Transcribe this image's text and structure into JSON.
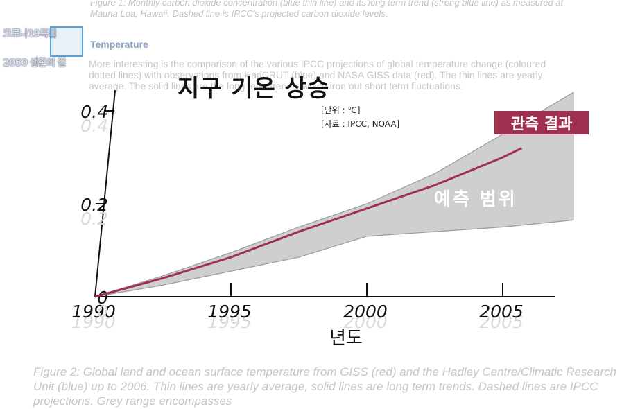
{
  "background": {
    "fig1_caption": "Figure 1: Monthly carbon dioxide concentration (blue thin line) and its long term trend (strong blue line) as measured at Mauna Loa, Hawaii. Dashed line is IPCC's projected carbon dioxide levels.",
    "heading": "Temperature",
    "body": "More interesting is the comparison of the various IPCC projections of global temperature change (coloured dotted lines) with observations from HadCRUT (blue) and NASA GISS data (red). The thin lines are yearly average. The solid lines are the long term trends, which iron out short term fluctuations.",
    "fig2_caption": "Figure 2: Global land and ocean surface temperature from GISS (red) and the Hadley Centre/Climatic Research Unit (blue) up to 2006. Thin lines are yearly average, solid lines are long term trends. Dashed lines are IPCC projections. Grey range encompasses"
  },
  "logo": {
    "line1": "코로나19특집",
    "line2": "2050 생존의 길"
  },
  "unit_note": "[단위 : ℃]",
  "source_note": "[자료 : IPCC, NOAA]",
  "colors": {
    "observed_line": "#a03050",
    "range_fill": "#cfcfcf",
    "range_stroke": "#9a9a9a",
    "obs_label_bg": "#a03050"
  },
  "chart_data": {
    "type": "line",
    "title": "지구 기온 상승",
    "xlabel": "년도",
    "ylabel": "",
    "x_ticks": [
      1990,
      1995,
      2000,
      2005
    ],
    "y_ticks": [
      0,
      0.2,
      0.4
    ],
    "y_tick_labels": [
      "0",
      "0.2",
      "0.4"
    ],
    "xlim": [
      1990,
      2008
    ],
    "ylim": [
      0,
      0.43
    ],
    "series": [
      {
        "name": "관측 결과",
        "x": [
          1990,
          1992.5,
          1995,
          1997.5,
          2000,
          2002.5,
          2005,
          2005.7
        ],
        "values": [
          0,
          0.04,
          0.085,
          0.14,
          0.19,
          0.24,
          0.3,
          0.32
        ]
      }
    ],
    "range": {
      "name": "예측 범위",
      "x": [
        1990,
        1992.5,
        1995,
        1997.5,
        2000,
        2002.5,
        2005,
        2007.6
      ],
      "upper": [
        0,
        0.045,
        0.095,
        0.15,
        0.2,
        0.265,
        0.35,
        0.44
      ],
      "lower": [
        0,
        0.025,
        0.055,
        0.085,
        0.13,
        0.14,
        0.15,
        0.165
      ]
    },
    "grid": false
  }
}
